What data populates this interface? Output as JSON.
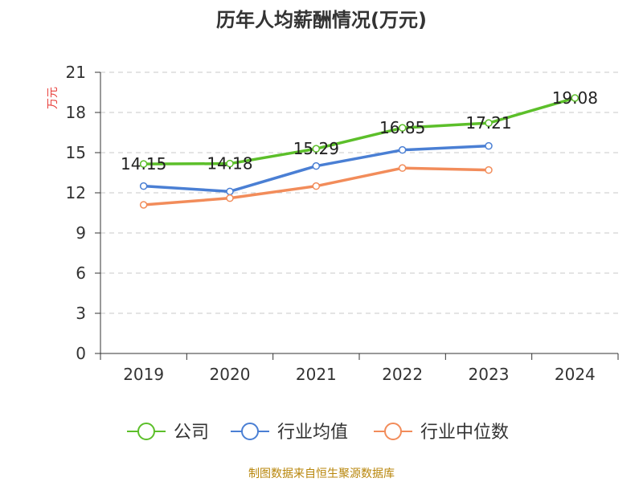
{
  "chart_data": {
    "type": "line",
    "title": "历年人均薪酬情况(万元)",
    "ylabel": "万元",
    "xlabel": "",
    "categories": [
      "2019",
      "2020",
      "2021",
      "2022",
      "2023",
      "2024"
    ],
    "ylim": [
      0,
      21
    ],
    "yticks": [
      0,
      3,
      6,
      9,
      12,
      15,
      18,
      21
    ],
    "grid": true,
    "legend_position": "bottom",
    "series": [
      {
        "name": "公司",
        "color": "#5cbf2a",
        "values": [
          14.15,
          14.18,
          15.29,
          16.85,
          17.21,
          19.08
        ],
        "labels": [
          "14.15",
          "14.18",
          "15.29",
          "16.85",
          "17.21",
          "19.08"
        ]
      },
      {
        "name": "行业均值",
        "color": "#4a7fd4",
        "values": [
          12.5,
          12.1,
          14.0,
          15.2,
          15.5,
          null
        ]
      },
      {
        "name": "行业中位数",
        "color": "#f28c5a",
        "values": [
          11.1,
          11.6,
          12.5,
          13.85,
          13.7,
          null
        ]
      }
    ]
  },
  "source": "制图数据来自恒生聚源数据库"
}
